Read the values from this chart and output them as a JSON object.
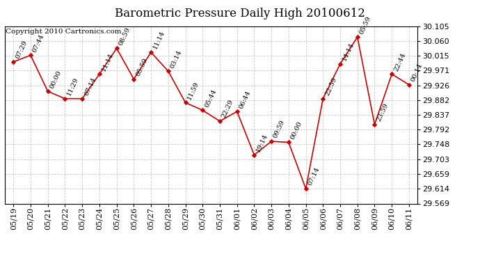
{
  "title": "Barometric Pressure Daily High 20100612",
  "copyright": "Copyright 2010 Cartronics.com",
  "x_labels": [
    "05/19",
    "05/20",
    "05/21",
    "05/22",
    "05/23",
    "05/24",
    "05/25",
    "05/26",
    "05/27",
    "05/28",
    "05/29",
    "05/30",
    "05/31",
    "06/01",
    "06/02",
    "06/03",
    "06/04",
    "06/05",
    "06/06",
    "06/07",
    "06/08",
    "06/09",
    "06/10",
    "06/11"
  ],
  "y_values": [
    29.997,
    30.017,
    29.908,
    29.886,
    29.886,
    29.96,
    30.038,
    29.945,
    30.026,
    29.969,
    29.874,
    29.851,
    29.818,
    29.847,
    29.716,
    29.757,
    29.754,
    29.614,
    29.886,
    29.991,
    30.072,
    29.808,
    29.96,
    29.928
  ],
  "time_labels": [
    "07:29",
    "07:44",
    "00:00",
    "11:29",
    "07:14",
    "11:14",
    "08:59",
    "05:59",
    "11:14",
    "03:14",
    "11:59",
    "05:44",
    "22:29",
    "06:44",
    "19:14",
    "09:59",
    "00:00",
    "07:14",
    "22:59",
    "14:14",
    "05:59",
    "23:59",
    "22:44",
    "00:14"
  ],
  "y_min": 29.569,
  "y_max": 30.105,
  "y_ticks": [
    29.569,
    29.614,
    29.659,
    29.703,
    29.748,
    29.792,
    29.837,
    29.882,
    29.926,
    29.971,
    30.015,
    30.06,
    30.105
  ],
  "line_color": "#cc0000",
  "marker_color": "#cc0000",
  "background_color": "#ffffff",
  "grid_color": "#c8c8c8",
  "title_fontsize": 12,
  "copyright_fontsize": 7.5,
  "label_fontsize": 7,
  "tick_fontsize": 8
}
